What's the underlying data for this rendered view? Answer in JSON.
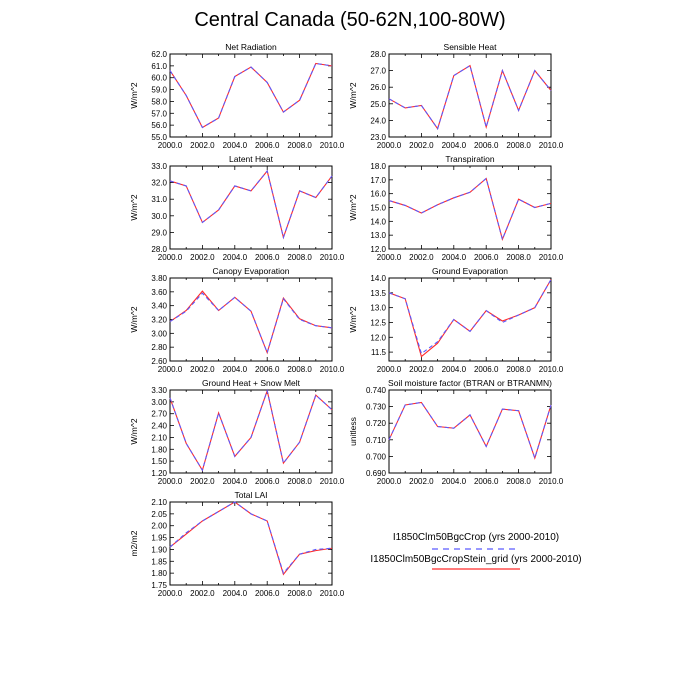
{
  "title": "Central Canada (50-62N,100-80W)",
  "colors": {
    "series1": "#5a5aff",
    "series2": "#ff2a2a",
    "axis": "#000000",
    "series1_dash": "dashed"
  },
  "legend": {
    "entries": [
      "I1850Clm50BgcCrop (yrs 2000-2010)",
      "I1850Clm50BgcCropStein_grid (yrs 2000-2010)"
    ]
  },
  "chart_data": [
    {
      "type": "line",
      "title": "Net Radiation",
      "ylabel": "W/m^2",
      "x": [
        2000,
        2001,
        2002,
        2003,
        2004,
        2005,
        2006,
        2007,
        2008,
        2009,
        2010
      ],
      "xlim": [
        2000,
        2010
      ],
      "ylim": [
        55,
        62
      ],
      "xticks": [
        "2000.0",
        "2002.0",
        "2004.0",
        "2006.0",
        "2008.0",
        "2010.0"
      ],
      "yticks": [
        "55.0",
        "56.0",
        "57.0",
        "58.0",
        "59.0",
        "60.0",
        "61.0",
        "62.0"
      ],
      "series": [
        {
          "name": "I1850Clm50BgcCrop (yrs 2000-2010)",
          "values": [
            60.6,
            58.5,
            55.8,
            56.6,
            60.1,
            60.9,
            59.6,
            57.1,
            58.1,
            61.2,
            61.0
          ]
        },
        {
          "name": "I1850Clm50BgcCropStein_grid (yrs 2000-2010)",
          "values": [
            60.6,
            58.5,
            55.8,
            56.6,
            60.1,
            60.9,
            59.6,
            57.1,
            58.1,
            61.2,
            61.0
          ]
        }
      ]
    },
    {
      "type": "line",
      "title": "Sensible Heat",
      "ylabel": "W/m^2",
      "x": [
        2000,
        2001,
        2002,
        2003,
        2004,
        2005,
        2006,
        2007,
        2008,
        2009,
        2010
      ],
      "xlim": [
        2000,
        2010
      ],
      "ylim": [
        23,
        28
      ],
      "xticks": [
        "2000.0",
        "2002.0",
        "2004.0",
        "2006.0",
        "2008.0",
        "2010.0"
      ],
      "yticks": [
        "23.0",
        "24.0",
        "25.0",
        "26.0",
        "27.0",
        "28.0"
      ],
      "series": [
        {
          "name": "I1850Clm50BgcCrop (yrs 2000-2010)",
          "values": [
            25.3,
            24.75,
            24.9,
            23.5,
            26.7,
            27.3,
            23.6,
            27.0,
            24.6,
            27.0,
            25.8
          ]
        },
        {
          "name": "I1850Clm50BgcCropStein_grid (yrs 2000-2010)",
          "values": [
            25.3,
            24.75,
            24.9,
            23.5,
            26.7,
            27.3,
            23.6,
            27.0,
            24.6,
            27.0,
            25.8
          ]
        }
      ]
    },
    {
      "type": "line",
      "title": "Latent Heat",
      "ylabel": "W/m^2",
      "x": [
        2000,
        2001,
        2002,
        2003,
        2004,
        2005,
        2006,
        2007,
        2008,
        2009,
        2010
      ],
      "xlim": [
        2000,
        2010
      ],
      "ylim": [
        28,
        33
      ],
      "xticks": [
        "2000.0",
        "2002.0",
        "2004.0",
        "2006.0",
        "2008.0",
        "2010.0"
      ],
      "yticks": [
        "28.0",
        "29.0",
        "30.0",
        "31.0",
        "32.0",
        "33.0"
      ],
      "series": [
        {
          "name": "I1850Clm50BgcCrop (yrs 2000-2010)",
          "values": [
            32.1,
            31.8,
            29.6,
            30.35,
            31.8,
            31.5,
            32.7,
            28.7,
            31.5,
            31.1,
            32.4
          ]
        },
        {
          "name": "I1850Clm50BgcCropStein_grid (yrs 2000-2010)",
          "values": [
            32.1,
            31.8,
            29.6,
            30.35,
            31.8,
            31.5,
            32.7,
            28.7,
            31.5,
            31.1,
            32.4
          ]
        }
      ]
    },
    {
      "type": "line",
      "title": "Transpiration",
      "ylabel": "W/m^2",
      "x": [
        2000,
        2001,
        2002,
        2003,
        2004,
        2005,
        2006,
        2007,
        2008,
        2009,
        2010
      ],
      "xlim": [
        2000,
        2010
      ],
      "ylim": [
        12,
        18
      ],
      "xticks": [
        "2000.0",
        "2002.0",
        "2004.0",
        "2006.0",
        "2008.0",
        "2010.0"
      ],
      "yticks": [
        "12.0",
        "13.0",
        "14.0",
        "15.0",
        "16.0",
        "17.0",
        "18.0"
      ],
      "series": [
        {
          "name": "I1850Clm50BgcCrop (yrs 2000-2010)",
          "values": [
            15.5,
            15.15,
            14.6,
            15.2,
            15.7,
            16.1,
            17.1,
            12.7,
            15.6,
            15.0,
            15.3
          ]
        },
        {
          "name": "I1850Clm50BgcCropStein_grid (yrs 2000-2010)",
          "values": [
            15.5,
            15.15,
            14.6,
            15.2,
            15.7,
            16.1,
            17.1,
            12.7,
            15.6,
            15.0,
            15.3
          ]
        }
      ]
    },
    {
      "type": "line",
      "title": "Canopy Evaporation",
      "ylabel": "W/m^2",
      "x": [
        2000,
        2001,
        2002,
        2003,
        2004,
        2005,
        2006,
        2007,
        2008,
        2009,
        2010
      ],
      "xlim": [
        2000,
        2010
      ],
      "ylim": [
        2.6,
        3.8
      ],
      "xticks": [
        "2000.0",
        "2002.0",
        "2004.0",
        "2006.0",
        "2008.0",
        "2010.0"
      ],
      "yticks": [
        "2.60",
        "2.80",
        "3.00",
        "3.20",
        "3.40",
        "3.60",
        "3.80"
      ],
      "series": [
        {
          "name": "I1850Clm50BgcCrop (yrs 2000-2010)",
          "values": [
            3.17,
            3.32,
            3.58,
            3.33,
            3.52,
            3.32,
            2.72,
            3.5,
            3.2,
            3.11,
            3.08
          ]
        },
        {
          "name": "I1850Clm50BgcCropStein_grid (yrs 2000-2010)",
          "values": [
            3.17,
            3.33,
            3.61,
            3.33,
            3.52,
            3.32,
            2.72,
            3.51,
            3.21,
            3.11,
            3.08
          ]
        }
      ]
    },
    {
      "type": "line",
      "title": "Ground Evaporation",
      "ylabel": "W/m^2",
      "x": [
        2000,
        2001,
        2002,
        2003,
        2004,
        2005,
        2006,
        2007,
        2008,
        2009,
        2010
      ],
      "xlim": [
        2000,
        2010
      ],
      "ylim": [
        11.2,
        14.0
      ],
      "xticks": [
        "2000.0",
        "2002.0",
        "2004.0",
        "2006.0",
        "2008.0",
        "2010.0"
      ],
      "yticks": [
        "11.5",
        "12.0",
        "12.5",
        "13.0",
        "13.5",
        "14.0"
      ],
      "series": [
        {
          "name": "I1850Clm50BgcCrop (yrs 2000-2010)",
          "values": [
            13.5,
            13.3,
            11.45,
            11.85,
            12.6,
            12.2,
            12.9,
            12.5,
            12.75,
            13.0,
            13.95
          ]
        },
        {
          "name": "I1850Clm50BgcCropStein_grid (yrs 2000-2010)",
          "values": [
            13.5,
            13.3,
            11.35,
            11.8,
            12.6,
            12.2,
            12.9,
            12.55,
            12.75,
            13.0,
            13.95
          ]
        }
      ]
    },
    {
      "type": "line",
      "title": "Ground Heat + Snow Melt",
      "ylabel": "W/m^2",
      "x": [
        2000,
        2001,
        2002,
        2003,
        2004,
        2005,
        2006,
        2007,
        2008,
        2009,
        2010
      ],
      "xlim": [
        2000,
        2010
      ],
      "ylim": [
        1.2,
        3.3
      ],
      "xticks": [
        "2000.0",
        "2002.0",
        "2004.0",
        "2006.0",
        "2008.0",
        "2010.0"
      ],
      "yticks": [
        "1.20",
        "1.50",
        "1.80",
        "2.10",
        "2.40",
        "2.70",
        "3.00",
        "3.30"
      ],
      "series": [
        {
          "name": "I1850Clm50BgcCrop (yrs 2000-2010)",
          "values": [
            3.1,
            1.95,
            1.27,
            2.72,
            1.62,
            2.1,
            3.28,
            1.45,
            1.98,
            3.17,
            2.8
          ]
        },
        {
          "name": "I1850Clm50BgcCropStein_grid (yrs 2000-2010)",
          "values": [
            3.1,
            1.95,
            1.27,
            2.72,
            1.62,
            2.1,
            3.28,
            1.45,
            1.98,
            3.17,
            2.8
          ]
        }
      ]
    },
    {
      "type": "line",
      "title": "Soil moisture factor (BTRAN or BTRANMN)",
      "ylabel": "unitless",
      "x": [
        2000,
        2001,
        2002,
        2003,
        2004,
        2005,
        2006,
        2007,
        2008,
        2009,
        2010
      ],
      "xlim": [
        2000,
        2010
      ],
      "ylim": [
        0.69,
        0.74
      ],
      "xticks": [
        "2000.0",
        "2002.0",
        "2004.0",
        "2006.0",
        "2008.0",
        "2010.0"
      ],
      "yticks": [
        "0.690",
        "0.700",
        "0.710",
        "0.720",
        "0.730",
        "0.740"
      ],
      "series": [
        {
          "name": "I1850Clm50BgcCrop (yrs 2000-2010)",
          "values": [
            0.71,
            0.731,
            0.7325,
            0.718,
            0.717,
            0.725,
            0.706,
            0.7285,
            0.7275,
            0.699,
            0.731
          ]
        },
        {
          "name": "I1850Clm50BgcCropStein_grid (yrs 2000-2010)",
          "values": [
            0.71,
            0.731,
            0.7325,
            0.718,
            0.717,
            0.725,
            0.706,
            0.7285,
            0.7275,
            0.699,
            0.731
          ]
        }
      ]
    },
    {
      "type": "line",
      "title": "Total LAI",
      "ylabel": "m2/m2",
      "x": [
        2000,
        2001,
        2002,
        2003,
        2004,
        2005,
        2006,
        2007,
        2008,
        2009,
        2010
      ],
      "xlim": [
        2000,
        2010
      ],
      "ylim": [
        1.75,
        2.1
      ],
      "xticks": [
        "2000.0",
        "2002.0",
        "2004.0",
        "2006.0",
        "2008.0",
        "2010.0"
      ],
      "yticks": [
        "1.75",
        "1.80",
        "1.85",
        "1.90",
        "1.95",
        "2.00",
        "2.05",
        "2.10"
      ],
      "series": [
        {
          "name": "I1850Clm50BgcCrop (yrs 2000-2010)",
          "values": [
            1.91,
            1.97,
            2.02,
            2.06,
            2.1,
            2.05,
            2.02,
            1.8,
            1.88,
            1.9,
            1.905
          ]
        },
        {
          "name": "I1850Clm50BgcCropStein_grid (yrs 2000-2010)",
          "values": [
            1.91,
            1.965,
            2.02,
            2.06,
            2.1,
            2.05,
            2.02,
            1.795,
            1.88,
            1.895,
            1.905
          ]
        }
      ]
    }
  ]
}
